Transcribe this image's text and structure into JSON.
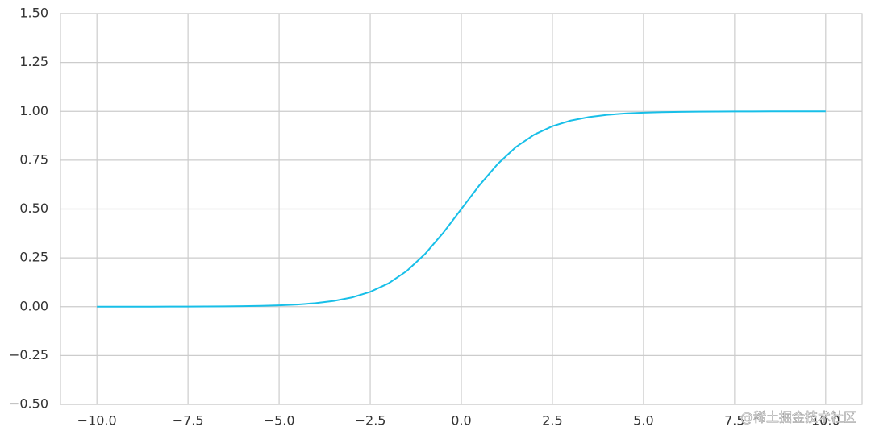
{
  "chart_data": {
    "type": "line",
    "x": [
      -10,
      -9.5,
      -9,
      -8.5,
      -8,
      -7.5,
      -7,
      -6.5,
      -6,
      -5.5,
      -5,
      -4.5,
      -4,
      -3.5,
      -3,
      -2.5,
      -2,
      -1.5,
      -1,
      -0.5,
      0,
      0.5,
      1,
      1.5,
      2,
      2.5,
      3,
      3.5,
      4,
      4.5,
      5,
      5.5,
      6,
      6.5,
      7,
      7.5,
      8,
      8.5,
      9,
      9.5,
      10
    ],
    "values": [
      4.54e-05,
      7.49e-05,
      0.000123,
      0.000203,
      0.000335,
      0.000553,
      0.000911,
      0.0015,
      0.00247,
      0.00407,
      0.00669,
      0.011,
      0.018,
      0.0293,
      0.0474,
      0.0759,
      0.1192,
      0.1824,
      0.2689,
      0.3775,
      0.5,
      0.6225,
      0.7311,
      0.8176,
      0.8808,
      0.9241,
      0.9526,
      0.9707,
      0.982,
      0.989,
      0.99331,
      0.99593,
      0.99753,
      0.9985,
      0.99909,
      0.99945,
      0.99966,
      0.9998,
      0.99988,
      0.99993,
      0.99995
    ],
    "color": "#18bfe8",
    "xlim": [
      -11,
      11
    ],
    "ylim": [
      -0.5,
      1.5
    ],
    "xticks": [
      {
        "value": -10,
        "label": "−10.0"
      },
      {
        "value": -7.5,
        "label": "−7.5"
      },
      {
        "value": -5,
        "label": "−5.0"
      },
      {
        "value": -2.5,
        "label": "−2.5"
      },
      {
        "value": 0,
        "label": "0.0"
      },
      2.5,
      {
        "value": 5,
        "label": "5.0"
      },
      7.5,
      {
        "value": 10,
        "label": "10.0"
      }
    ],
    "yticks": [
      {
        "value": -0.5,
        "label": "−0.50"
      },
      {
        "value": -0.25,
        "label": "−0.25"
      },
      {
        "value": 0,
        "label": "0.00"
      },
      0.25,
      {
        "value": 0.5,
        "label": "0.50"
      },
      0.75,
      {
        "value": 1,
        "label": "1.00"
      },
      1.25,
      {
        "value": 1.5,
        "label": "1.50"
      }
    ],
    "grid": true,
    "annotation": "@稀土掘金技术社区"
  }
}
